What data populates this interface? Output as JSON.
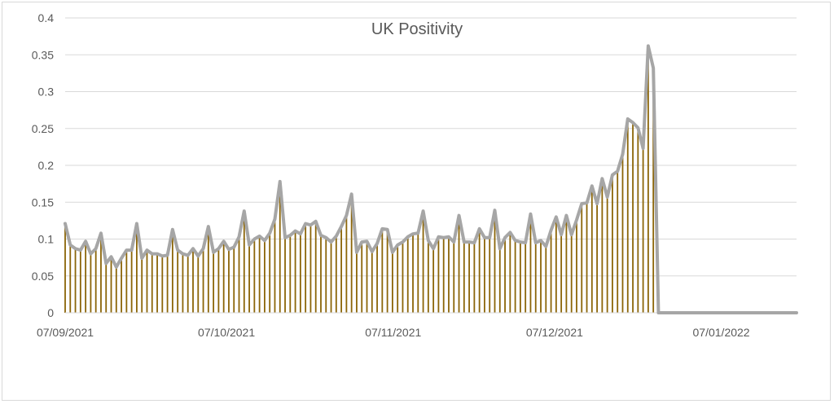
{
  "chart_data": {
    "type": "bar",
    "title": "UK Positivity",
    "xlabel": "",
    "ylabel": "",
    "ylim": [
      0,
      0.4
    ],
    "y_ticks": [
      "0",
      "0.05",
      "0.1",
      "0.15",
      "0.2",
      "0.25",
      "0.3",
      "0.35",
      "0.4"
    ],
    "x_tick_labels": [
      "07/09/2021",
      "07/10/2021",
      "07/11/2021",
      "07/12/2021",
      "07/01/2022"
    ],
    "x_start": "07/09/2021",
    "x_end": "21/01/2022",
    "grid": true,
    "bar_color": "#8b6508",
    "line_color": "#a6a6a6",
    "values": [
      0.121,
      0.092,
      0.087,
      0.085,
      0.097,
      0.08,
      0.087,
      0.108,
      0.067,
      0.076,
      0.062,
      0.074,
      0.085,
      0.085,
      0.121,
      0.074,
      0.085,
      0.08,
      0.08,
      0.077,
      0.078,
      0.113,
      0.085,
      0.08,
      0.078,
      0.087,
      0.077,
      0.087,
      0.117,
      0.082,
      0.087,
      0.097,
      0.086,
      0.089,
      0.103,
      0.138,
      0.092,
      0.1,
      0.104,
      0.098,
      0.108,
      0.127,
      0.178,
      0.102,
      0.105,
      0.111,
      0.107,
      0.121,
      0.119,
      0.124,
      0.105,
      0.102,
      0.096,
      0.104,
      0.117,
      0.132,
      0.161,
      0.082,
      0.096,
      0.097,
      0.083,
      0.094,
      0.114,
      0.113,
      0.082,
      0.092,
      0.096,
      0.103,
      0.107,
      0.108,
      0.138,
      0.098,
      0.087,
      0.103,
      0.102,
      0.103,
      0.096,
      0.132,
      0.096,
      0.096,
      0.095,
      0.114,
      0.102,
      0.102,
      0.139,
      0.087,
      0.102,
      0.109,
      0.098,
      0.096,
      0.095,
      0.134,
      0.095,
      0.098,
      0.09,
      0.112,
      0.13,
      0.106,
      0.132,
      0.106,
      0.126,
      0.148,
      0.149,
      0.172,
      0.148,
      0.182,
      0.157,
      0.187,
      0.192,
      0.215,
      0.263,
      0.258,
      0.251,
      0.223,
      0.362,
      0.332,
      0.0,
      0.0,
      0.0,
      0.0,
      0.0,
      0.0,
      0.0,
      0.0,
      0.0,
      0.0,
      0.0,
      0.0,
      0.0,
      0.0,
      0.0,
      0.0,
      0.0,
      0.0,
      0.0,
      0.0,
      0.0,
      0.0,
      0.0,
      0.0,
      0.0,
      0.0,
      0.0,
      0.0
    ]
  }
}
